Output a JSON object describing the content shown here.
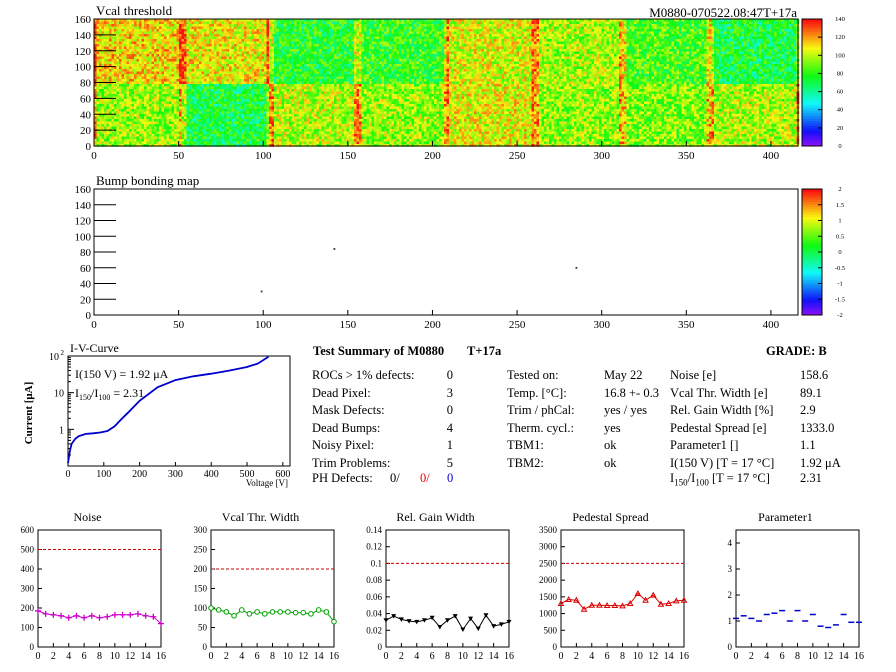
{
  "header": {
    "module_id": "M0880-070522.08:47T+17a"
  },
  "chart_data": [
    {
      "type": "heatmap",
      "title": "Vcal threshold",
      "xlim": [
        0,
        416
      ],
      "ylim": [
        0,
        160
      ],
      "x_ticks": [
        "0",
        "50",
        "100",
        "150",
        "200",
        "250",
        "300",
        "350",
        "400"
      ],
      "y_ticks": [
        "0",
        "20",
        "40",
        "60",
        "80",
        "100",
        "120",
        "140",
        "160"
      ],
      "colorbar": {
        "range": [
          0,
          140
        ],
        "ticks": [
          "0",
          "20",
          "40",
          "60",
          "80",
          "100",
          "120",
          "140"
        ]
      },
      "roc_means_top": [
        112,
        108,
        76,
        80,
        104,
        98,
        84,
        72
      ],
      "roc_means_bottom": [
        96,
        72,
        100,
        96,
        106,
        94,
        92,
        98
      ]
    },
    {
      "type": "heatmap",
      "title": "Bump bonding map",
      "xlim": [
        0,
        416
      ],
      "ylim": [
        0,
        160
      ],
      "x_ticks": [
        "0",
        "50",
        "100",
        "150",
        "200",
        "250",
        "300",
        "350",
        "400"
      ],
      "y_ticks": [
        "0",
        "20",
        "40",
        "60",
        "80",
        "100",
        "120",
        "140",
        "160"
      ],
      "colorbar": {
        "range": [
          -2,
          2
        ],
        "ticks": [
          "-2",
          "-1.5",
          "-1",
          "-0.5",
          "0",
          "0.5",
          "1",
          "1.5",
          "2"
        ]
      },
      "points": [
        [
          142,
          84
        ],
        [
          285,
          60
        ],
        [
          99,
          30
        ]
      ]
    },
    {
      "type": "line",
      "title": "I-V-Curve",
      "xlabel": "Voltage [V]",
      "ylabel": "Current [μA]",
      "log_y": true,
      "xlim": [
        0,
        620
      ],
      "ylim": [
        0.1,
        100
      ],
      "x_ticks": [
        "0",
        "100",
        "200",
        "300",
        "400",
        "500",
        "600"
      ],
      "y_ticks": [
        "1",
        "10",
        "10"
      ],
      "y_tick_sup": [
        "",
        "",
        "2"
      ],
      "annotation_1": "I(150 V) = 1.92 μA",
      "annotation_2_pre": "I",
      "annotation_2_sub1": "150",
      "annotation_2_mid": "/I",
      "annotation_2_sub2": "100",
      "annotation_2_post": " =  2.31",
      "x": [
        0,
        5,
        10,
        20,
        30,
        50,
        70,
        90,
        110,
        130,
        150,
        170,
        200,
        250,
        300,
        350,
        400,
        450,
        500,
        530,
        560
      ],
      "y": [
        0.12,
        0.25,
        0.4,
        0.55,
        0.65,
        0.75,
        0.78,
        0.82,
        0.9,
        1.2,
        1.92,
        3,
        6,
        14,
        22,
        28,
        33,
        40,
        50,
        62,
        95
      ]
    },
    {
      "type": "line",
      "title": "Noise",
      "xlim": [
        0,
        16
      ],
      "ylim": [
        0,
        600
      ],
      "threshold": 500,
      "x_ticks": [
        "0",
        "2",
        "4",
        "6",
        "8",
        "10",
        "12",
        "14",
        "16"
      ],
      "y_ticks": [
        "0",
        "100",
        "200",
        "300",
        "400",
        "500",
        "600"
      ],
      "color": "#cc00cc",
      "values": [
        185,
        170,
        165,
        160,
        150,
        160,
        150,
        160,
        150,
        155,
        165,
        165,
        165,
        170,
        160,
        155,
        120
      ]
    },
    {
      "type": "line",
      "title": "Vcal Thr. Width",
      "xlim": [
        0,
        16
      ],
      "ylim": [
        0,
        300
      ],
      "threshold": 200,
      "x_ticks": [
        "0",
        "2",
        "4",
        "6",
        "8",
        "10",
        "12",
        "14",
        "16"
      ],
      "y_ticks": [
        "0",
        "50",
        "100",
        "150",
        "200",
        "250",
        "300"
      ],
      "color": "#00a000",
      "values": [
        100,
        95,
        90,
        80,
        95,
        85,
        90,
        85,
        90,
        90,
        90,
        88,
        88,
        85,
        95,
        90,
        65
      ]
    },
    {
      "type": "line",
      "title": "Rel. Gain Width",
      "xlim": [
        0,
        16
      ],
      "ylim": [
        0,
        0.14
      ],
      "threshold": 0.1,
      "x_ticks": [
        "0",
        "2",
        "4",
        "6",
        "8",
        "10",
        "12",
        "14",
        "16"
      ],
      "y_ticks": [
        "0",
        "0.02",
        "0.04",
        "0.06",
        "0.08",
        "0.1",
        "0.12",
        "0.14"
      ],
      "color": "#000000",
      "values": [
        0.032,
        0.037,
        0.033,
        0.031,
        0.03,
        0.032,
        0.035,
        0.024,
        0.032,
        0.037,
        0.021,
        0.034,
        0.022,
        0.038,
        0.025,
        0.027,
        0.03
      ]
    },
    {
      "type": "line",
      "title": "Pedestal Spread",
      "xlim": [
        0,
        16
      ],
      "ylim": [
        0,
        3500
      ],
      "threshold": 2500,
      "x_ticks": [
        "0",
        "2",
        "4",
        "6",
        "8",
        "10",
        "12",
        "14",
        "16"
      ],
      "y_ticks": [
        "0",
        "500",
        "1000",
        "1500",
        "2000",
        "2500",
        "3000",
        "3500"
      ],
      "color": "#dd0000",
      "values": [
        1300,
        1420,
        1400,
        1130,
        1250,
        1250,
        1240,
        1240,
        1230,
        1300,
        1600,
        1400,
        1550,
        1280,
        1300,
        1380,
        1400
      ]
    },
    {
      "type": "scatter",
      "title": "Parameter1",
      "xlim": [
        0,
        16
      ],
      "ylim": [
        0,
        4.5
      ],
      "x_ticks": [
        "0",
        "2",
        "4",
        "6",
        "8",
        "10",
        "12",
        "14",
        "16"
      ],
      "y_ticks": [
        "0",
        "1",
        "2",
        "3",
        "4"
      ],
      "color": "#0000cc",
      "values": [
        1.1,
        1.2,
        1.1,
        1.0,
        1.25,
        1.3,
        1.4,
        1.0,
        1.4,
        1.0,
        1.25,
        0.8,
        0.75,
        0.85,
        1.25,
        0.95,
        0.95
      ]
    }
  ],
  "summary": {
    "title": "Test Summary of M0880",
    "title_tag": "T+17a",
    "grade_label": "GRADE:  B",
    "defects": [
      {
        "label": "ROCs > 1% defects:",
        "value": "0"
      },
      {
        "label": "Dead Pixel:",
        "value": "3"
      },
      {
        "label": "Mask Defects:",
        "value": "0"
      },
      {
        "label": "Dead Bumps:",
        "value": "4"
      },
      {
        "label": "Noisy Pixel:",
        "value": "1"
      },
      {
        "label": "Trim Problems:",
        "value": "5"
      }
    ],
    "ph_label": "PH Defects:",
    "ph_values": [
      "0/",
      "0/",
      "0"
    ],
    "conditions": [
      {
        "label": "Tested on:",
        "value": "May 22"
      },
      {
        "label": "Temp. [°C]:",
        "value": "16.8 +- 0.3"
      },
      {
        "label": "Trim / phCal:",
        "value": "yes / yes"
      },
      {
        "label": "Therm. cycl.:",
        "value": "yes"
      },
      {
        "label": "TBM1:",
        "value": "ok"
      },
      {
        "label": "TBM2:",
        "value": "ok"
      }
    ],
    "params": [
      {
        "label": "Noise [e]",
        "value": "158.6"
      },
      {
        "label": "Vcal Thr. Width [e]",
        "value": "89.1"
      },
      {
        "label": "Rel. Gain Width [%]",
        "value": "2.9"
      },
      {
        "label": "Pedestal Spread [e]",
        "value": "1333.0"
      },
      {
        "label": "Parameter1 []",
        "value": "1.1"
      },
      {
        "label": "I(150 V) [T = 17 °C]",
        "value": "1.92 μA"
      }
    ],
    "ratio_label_pre": "I",
    "ratio_label_sub1": "150",
    "ratio_label_mid": "/I",
    "ratio_label_sub2": "100",
    "ratio_label_post": "  [T = 17 °C]",
    "ratio_value": "2.31"
  }
}
